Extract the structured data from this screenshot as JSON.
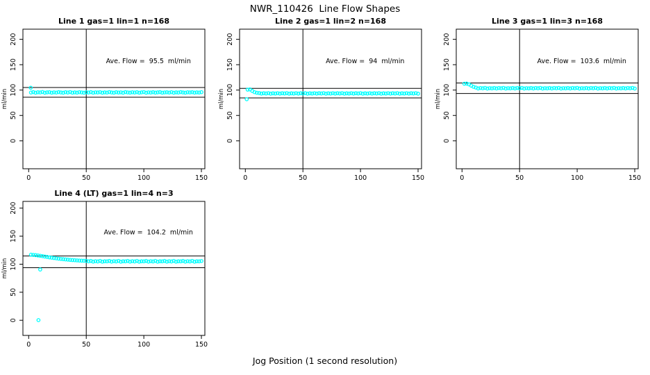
{
  "title": "NWR_110426  Line Flow Shapes",
  "xlabel": "Jog Position (1 second resolution)",
  "point_color": "#00ffff",
  "axis_color": "#000000",
  "chart_data": [
    {
      "type": "scatter",
      "title": "Line 1 gas=1 lin=1 n=168",
      "annotation": "Ave. Flow =  95.5  ml/min",
      "ave_flow_ml_min": 95.5,
      "ylabel": "ml/min",
      "xticks": [
        0,
        50,
        100,
        150
      ],
      "yticks": [
        0,
        50,
        100,
        150,
        200
      ],
      "xlim": [
        -5,
        153
      ],
      "ylim": [
        -55,
        220
      ],
      "hlines": [
        105.1,
        86.0
      ],
      "vline": 50,
      "annotation_xy": [
        104,
        153
      ],
      "series": {
        "x_start": 2,
        "x_step": 2,
        "y": [
          95.2,
          96.0,
          94.9,
          95.7,
          95.4,
          96.2,
          94.8,
          95.5,
          95.9,
          94.9,
          95.6,
          95.1,
          96.0,
          95.3,
          94.8,
          95.8,
          95.2,
          96.1,
          94.9,
          95.5,
          95.0,
          95.9,
          95.4,
          94.8,
          95.7,
          95.2,
          96.0,
          94.9,
          95.6,
          95.3,
          95.9,
          94.8,
          95.5,
          95.1,
          96.1,
          95.3,
          94.9,
          95.8,
          95.2,
          95.6,
          94.8,
          96.0,
          95.4,
          95.0,
          95.7,
          95.2,
          95.9,
          94.9,
          95.5,
          96.1,
          94.8,
          95.6,
          95.2,
          95.8,
          95.0,
          95.5,
          96.0,
          94.9,
          95.4,
          95.7,
          95.1,
          95.9,
          94.8,
          95.5,
          95.2,
          96.0,
          95.3,
          94.9,
          95.7,
          95.4,
          95.8,
          95.0,
          95.5,
          95.2,
          95.9
        ]
      },
      "extra_points": [
        [
          1.8,
          104.6
        ]
      ]
    },
    {
      "type": "scatter",
      "title": "Line 2 gas=1 lin=2 n=168",
      "annotation": "Ave. Flow =  94  ml/min",
      "ave_flow_ml_min": 94,
      "ylabel": "ml/min",
      "xticks": [
        0,
        50,
        100,
        150
      ],
      "yticks": [
        0,
        50,
        100,
        150,
        200
      ],
      "xlim": [
        -5,
        153
      ],
      "ylim": [
        -55,
        220
      ],
      "hlines": [
        103.4,
        84.6
      ],
      "vline": 50,
      "annotation_xy": [
        104,
        153
      ],
      "series": {
        "x_start": 2,
        "x_step": 2,
        "y": [
          100.9,
          101.3,
          98.2,
          95.9,
          94.7,
          94.1,
          93.1,
          93.8,
          93.3,
          94.0,
          92.9,
          93.6,
          93.2,
          93.9,
          93.1,
          93.8,
          93.3,
          94.0,
          92.9,
          93.6,
          93.2,
          93.9,
          93.1,
          93.8,
          93.3,
          94.0,
          92.9,
          93.6,
          93.2,
          93.9,
          93.1,
          93.8,
          93.3,
          94.0,
          92.9,
          93.6,
          93.2,
          93.9,
          93.1,
          93.8,
          93.3,
          94.0,
          92.9,
          93.6,
          93.2,
          93.9,
          93.1,
          93.8,
          93.3,
          94.0,
          92.9,
          93.6,
          93.2,
          93.9,
          93.1,
          93.8,
          93.3,
          94.0,
          92.9,
          93.6,
          93.2,
          93.9,
          93.1,
          93.8,
          93.3,
          94.0,
          92.9,
          93.6,
          93.2,
          93.9,
          93.1,
          93.8,
          93.3,
          94.0,
          92.9
        ]
      },
      "extra_points": [
        [
          1.2,
          82.0
        ]
      ]
    },
    {
      "type": "scatter",
      "title": "Line 3 gas=1 lin=3 n=168",
      "annotation": "Ave. Flow =  103.6  ml/min",
      "ave_flow_ml_min": 103.6,
      "ylabel": "ml/min",
      "xticks": [
        0,
        50,
        100,
        150
      ],
      "yticks": [
        0,
        50,
        100,
        150,
        200
      ],
      "xlim": [
        -5,
        153
      ],
      "ylim": [
        -55,
        220
      ],
      "hlines": [
        114.0,
        93.2
      ],
      "vline": 50,
      "annotation_xy": [
        104,
        153
      ],
      "series": {
        "x_start": 2,
        "x_step": 2,
        "y": [
          112.4,
          112.8,
          111.3,
          108.7,
          106.4,
          105.0,
          103.2,
          104.1,
          103.5,
          104.3,
          103.0,
          103.8,
          103.4,
          104.0,
          103.2,
          104.1,
          103.5,
          104.3,
          103.0,
          103.8,
          103.4,
          104.0,
          103.2,
          104.1,
          103.5,
          104.3,
          103.0,
          103.8,
          103.4,
          104.0,
          103.2,
          104.1,
          103.5,
          104.3,
          103.0,
          103.8,
          103.4,
          104.0,
          103.2,
          104.1,
          103.5,
          104.3,
          103.0,
          103.8,
          103.4,
          104.0,
          103.2,
          104.1,
          103.5,
          104.3,
          103.0,
          103.8,
          103.4,
          104.0,
          103.2,
          104.1,
          103.5,
          104.3,
          103.0,
          103.8,
          103.4,
          104.0,
          103.2,
          104.1,
          103.5,
          104.3,
          103.0,
          103.8,
          103.4,
          104.0,
          103.2,
          104.1,
          103.5,
          104.3,
          103.0
        ]
      },
      "extra_points": []
    },
    {
      "type": "scatter",
      "title": "Line 4 (LT) gas=1 lin=4 n=3",
      "annotation": "Ave. Flow =  104.2  ml/min",
      "ave_flow_ml_min": 104.2,
      "ylabel": "ml/min",
      "xticks": [
        0,
        50,
        100,
        150
      ],
      "yticks": [
        0,
        50,
        100,
        150,
        200
      ],
      "xlim": [
        -5,
        153
      ],
      "ylim": [
        -27,
        212
      ],
      "hlines": [
        114.6,
        93.8
      ],
      "vline": 50,
      "annotation_xy": [
        104,
        153
      ],
      "series": {
        "x_start": 2,
        "x_step": 2,
        "y": [
          117.0,
          116.6,
          116.2,
          115.6,
          115.0,
          114.3,
          113.6,
          112.9,
          112.2,
          111.6,
          111.0,
          110.4,
          109.9,
          109.4,
          108.9,
          108.5,
          108.1,
          107.7,
          107.4,
          107.1,
          106.8,
          106.5,
          106.3,
          106.1,
          105.9,
          105.1,
          105.8,
          104.6,
          105.4,
          104.9,
          105.9,
          104.5,
          105.2,
          105.1,
          105.8,
          104.6,
          105.4,
          104.9,
          105.9,
          104.5,
          105.2,
          105.1,
          105.8,
          104.6,
          105.4,
          104.9,
          105.9,
          104.5,
          105.2,
          105.1,
          105.8,
          104.6,
          105.4,
          104.9,
          105.9,
          104.5,
          105.2,
          105.1,
          105.8,
          104.6,
          105.4,
          104.9,
          105.9,
          104.5,
          105.2,
          105.1,
          105.8,
          104.6,
          105.4,
          104.9,
          105.9,
          104.5,
          105.2,
          105.1,
          105.6
        ]
      },
      "extra_points": [
        [
          8.5,
          0.3
        ],
        [
          10,
          90.5
        ]
      ]
    }
  ]
}
